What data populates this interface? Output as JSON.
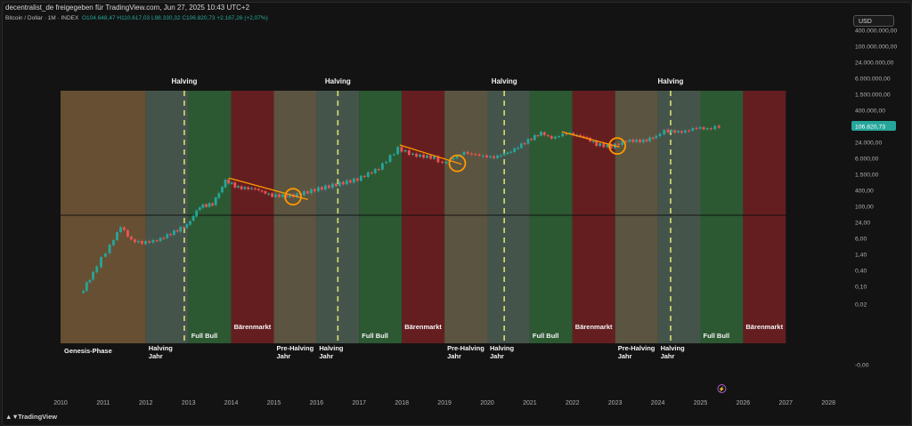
{
  "header": {
    "title": "decentralist_de freigegeben für TradingView.com, Jun 27, 2025 10:43 UTC+2",
    "symbol": "Bitcoin / Dollar · 1M · INDEX",
    "open": "O104.648,47",
    "high": "H110.617,03",
    "low": "L98.330,32",
    "close": "C106.820,73",
    "change": "+2.167,26 (+2,07%)",
    "currency_button": "USD"
  },
  "footer": {
    "brand": "TradingView"
  },
  "colors": {
    "genesis": "#6e5536",
    "halving_year": "#4a5a50",
    "full_bull": "#2f5e35",
    "bear": "#6d1f22",
    "pre_halving": "#625a44",
    "halving_line": "#d8e070",
    "up_candle": "#26a69a",
    "down_candle": "#ef5350",
    "trendline": "#ff9800",
    "price_label": "#26a69a"
  },
  "chart_data": {
    "type": "line",
    "title": "",
    "xlabel": "",
    "ylabel": "",
    "y_scale": "log",
    "x_ticks": [
      "2010",
      "2011",
      "2012",
      "2013",
      "2014",
      "2015",
      "2016",
      "2017",
      "2018",
      "2019",
      "2020",
      "2021",
      "2022",
      "2023",
      "2024",
      "2025",
      "2026",
      "2027",
      "2028"
    ],
    "y_ticks": [
      "400.000.000,00",
      "100.000.000,00",
      "24.000.000,00",
      "6.000.000,00",
      "1.500.000,00",
      "400.000,00",
      "106.820,73",
      "24.000,00",
      "6.000,00",
      "1.500,00",
      "400,00",
      "100,00",
      "24,00",
      "6,00",
      "1,40",
      "0,40",
      "0,10",
      "0,02",
      "-0,00"
    ],
    "current_price_label": "106.820,73",
    "halving_label": "Halving",
    "halvings": [
      2012.9,
      2016.5,
      2020.4,
      2024.3
    ],
    "phases": [
      {
        "label": "Genesis-Phase",
        "start": 2010.0,
        "end": 2012.0,
        "kind": "genesis"
      },
      {
        "label": "Halving Jahr",
        "start": 2012.0,
        "end": 2013.0,
        "kind": "halving_year"
      },
      {
        "label": "Full Bull",
        "start": 2013.0,
        "end": 2014.0,
        "kind": "full_bull"
      },
      {
        "label": "Bärenmarkt",
        "start": 2014.0,
        "end": 2015.0,
        "kind": "bear"
      },
      {
        "label": "Pre-Halving Jahr",
        "start": 2015.0,
        "end": 2016.0,
        "kind": "pre_halving"
      },
      {
        "label": "Halving Jahr",
        "start": 2016.0,
        "end": 2017.0,
        "kind": "halving_year"
      },
      {
        "label": "Full Bull",
        "start": 2017.0,
        "end": 2018.0,
        "kind": "full_bull"
      },
      {
        "label": "Bärenmarkt",
        "start": 2018.0,
        "end": 2019.0,
        "kind": "bear"
      },
      {
        "label": "Pre-Halving Jahr",
        "start": 2019.0,
        "end": 2020.0,
        "kind": "pre_halving"
      },
      {
        "label": "Halving Jahr",
        "start": 2020.0,
        "end": 2021.0,
        "kind": "halving_year"
      },
      {
        "label": "Full Bull",
        "start": 2021.0,
        "end": 2022.0,
        "kind": "full_bull"
      },
      {
        "label": "Bärenmarkt",
        "start": 2022.0,
        "end": 2023.0,
        "kind": "bear"
      },
      {
        "label": "Pre-Halving Jahr",
        "start": 2023.0,
        "end": 2024.0,
        "kind": "pre_halving"
      },
      {
        "label": "Halving Jahr",
        "start": 2024.0,
        "end": 2025.0,
        "kind": "halving_year"
      },
      {
        "label": "Full Bull",
        "start": 2025.0,
        "end": 2026.0,
        "kind": "full_bull"
      },
      {
        "label": "Bärenmarkt",
        "start": 2026.0,
        "end": 2027.0,
        "kind": "bear"
      }
    ],
    "series": [
      {
        "values": [
          {
            "x": 2010.5,
            "y": 0.05
          },
          {
            "x": 2010.8,
            "y": 0.3
          },
          {
            "x": 2011.0,
            "y": 1
          },
          {
            "x": 2011.2,
            "y": 3
          },
          {
            "x": 2011.45,
            "y": 18
          },
          {
            "x": 2011.7,
            "y": 5
          },
          {
            "x": 2011.95,
            "y": 4
          },
          {
            "x": 2012.3,
            "y": 5
          },
          {
            "x": 2012.7,
            "y": 11
          },
          {
            "x": 2013.0,
            "y": 20
          },
          {
            "x": 2013.3,
            "y": 100
          },
          {
            "x": 2013.6,
            "y": 120
          },
          {
            "x": 2013.9,
            "y": 900
          },
          {
            "x": 2014.2,
            "y": 500
          },
          {
            "x": 2014.6,
            "y": 450
          },
          {
            "x": 2015.0,
            "y": 250
          },
          {
            "x": 2015.5,
            "y": 250
          },
          {
            "x": 2016.0,
            "y": 420
          },
          {
            "x": 2016.5,
            "y": 650
          },
          {
            "x": 2017.0,
            "y": 1000
          },
          {
            "x": 2017.5,
            "y": 2500
          },
          {
            "x": 2017.95,
            "y": 14000
          },
          {
            "x": 2018.3,
            "y": 8000
          },
          {
            "x": 2018.8,
            "y": 6300
          },
          {
            "x": 2019.0,
            "y": 3800
          },
          {
            "x": 2019.5,
            "y": 10000
          },
          {
            "x": 2019.95,
            "y": 7200
          },
          {
            "x": 2020.2,
            "y": 6500
          },
          {
            "x": 2020.6,
            "y": 11000
          },
          {
            "x": 2021.0,
            "y": 29000
          },
          {
            "x": 2021.3,
            "y": 58000
          },
          {
            "x": 2021.55,
            "y": 35000
          },
          {
            "x": 2021.9,
            "y": 57000
          },
          {
            "x": 2022.3,
            "y": 40000
          },
          {
            "x": 2022.6,
            "y": 20000
          },
          {
            "x": 2022.95,
            "y": 16500
          },
          {
            "x": 2023.3,
            "y": 28000
          },
          {
            "x": 2023.7,
            "y": 27000
          },
          {
            "x": 2024.0,
            "y": 42000
          },
          {
            "x": 2024.2,
            "y": 70000
          },
          {
            "x": 2024.6,
            "y": 62000
          },
          {
            "x": 2024.95,
            "y": 94000
          },
          {
            "x": 2025.2,
            "y": 83000
          },
          {
            "x": 2025.48,
            "y": 106820.73
          }
        ]
      }
    ],
    "trendlines": [
      {
        "from": {
          "x": 2013.95,
          "y": 1100
        },
        "to": {
          "x": 2015.8,
          "y": 180
        }
      },
      {
        "from": {
          "x": 2017.95,
          "y": 19000
        },
        "to": {
          "x": 2019.4,
          "y": 3600
        }
      },
      {
        "from": {
          "x": 2021.75,
          "y": 64000
        },
        "to": {
          "x": 2023.1,
          "y": 16000
        }
      }
    ],
    "circles": [
      {
        "x": 2015.45,
        "y": 230
      },
      {
        "x": 2019.3,
        "y": 3900
      },
      {
        "x": 2023.05,
        "y": 17500
      }
    ]
  }
}
